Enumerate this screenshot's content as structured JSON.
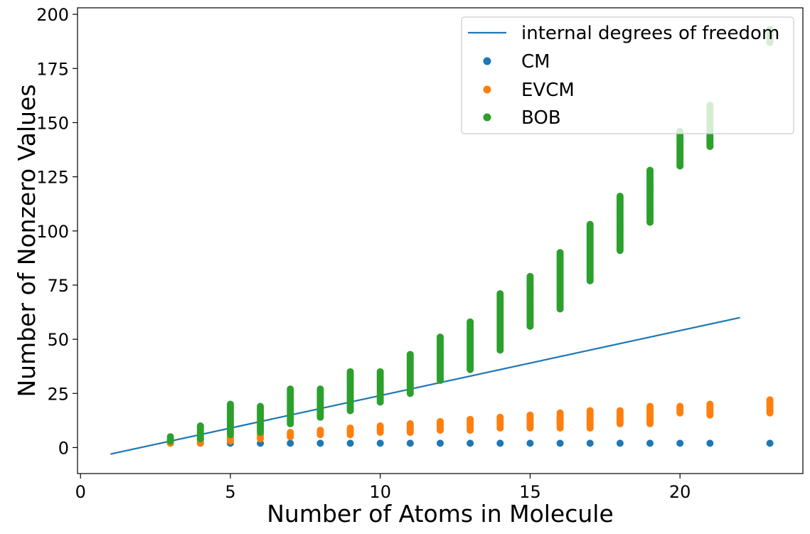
{
  "chart_data": {
    "type": "scatter",
    "xlabel": "Number of Atoms in Molecule",
    "ylabel": "Number of Nonzero Values",
    "xlim": [
      -0.1,
      24.1
    ],
    "ylim": [
      -12,
      203
    ],
    "xticks": [
      0,
      5,
      10,
      15,
      20
    ],
    "yticks": [
      0,
      25,
      50,
      75,
      100,
      125,
      150,
      175,
      200
    ],
    "legend_position": "top-right",
    "line": {
      "name": "internal degrees of freedom",
      "color": "#1f77b4",
      "x": [
        1,
        22
      ],
      "y": [
        -3,
        60
      ]
    },
    "series": [
      {
        "name": "CM",
        "color": "#1f77b4",
        "points": [
          [
            3,
            2
          ],
          [
            4,
            2
          ],
          [
            5,
            2
          ],
          [
            6,
            2
          ],
          [
            7,
            2
          ],
          [
            8,
            2
          ],
          [
            9,
            2
          ],
          [
            10,
            2
          ],
          [
            11,
            2
          ],
          [
            12,
            2
          ],
          [
            13,
            2
          ],
          [
            14,
            2
          ],
          [
            15,
            2
          ],
          [
            16,
            2
          ],
          [
            17,
            2
          ],
          [
            18,
            2
          ],
          [
            19,
            2
          ],
          [
            20,
            2
          ],
          [
            21,
            2
          ],
          [
            23,
            2
          ]
        ]
      },
      {
        "name": "EVCM",
        "color": "#ff7f0e",
        "ranges": [
          {
            "x": 3,
            "min": 2,
            "max": 3
          },
          {
            "x": 4,
            "min": 2,
            "max": 4
          },
          {
            "x": 5,
            "min": 3,
            "max": 5
          },
          {
            "x": 6,
            "min": 4,
            "max": 6
          },
          {
            "x": 7,
            "min": 5,
            "max": 7
          },
          {
            "x": 8,
            "min": 6,
            "max": 8
          },
          {
            "x": 9,
            "min": 6,
            "max": 9
          },
          {
            "x": 10,
            "min": 7,
            "max": 10
          },
          {
            "x": 11,
            "min": 7,
            "max": 11
          },
          {
            "x": 12,
            "min": 8,
            "max": 12
          },
          {
            "x": 13,
            "min": 8,
            "max": 13
          },
          {
            "x": 14,
            "min": 9,
            "max": 14
          },
          {
            "x": 15,
            "min": 9,
            "max": 15
          },
          {
            "x": 16,
            "min": 9,
            "max": 16
          },
          {
            "x": 17,
            "min": 9,
            "max": 17
          },
          {
            "x": 18,
            "min": 11,
            "max": 17
          },
          {
            "x": 19,
            "min": 11,
            "max": 19
          },
          {
            "x": 20,
            "min": 16,
            "max": 19
          },
          {
            "x": 21,
            "min": 15,
            "max": 20
          },
          {
            "x": 23,
            "min": 16,
            "max": 22
          }
        ]
      },
      {
        "name": "BOB",
        "color": "#2ca02c",
        "ranges": [
          {
            "x": 3,
            "min": 3,
            "max": 5
          },
          {
            "x": 4,
            "min": 4,
            "max": 10
          },
          {
            "x": 5,
            "min": 6,
            "max": 20
          },
          {
            "x": 6,
            "min": 7,
            "max": 19
          },
          {
            "x": 7,
            "min": 11,
            "max": 27
          },
          {
            "x": 8,
            "min": 14,
            "max": 27
          },
          {
            "x": 9,
            "min": 17,
            "max": 35
          },
          {
            "x": 10,
            "min": 21,
            "max": 35
          },
          {
            "x": 11,
            "min": 25,
            "max": 43
          },
          {
            "x": 12,
            "min": 31,
            "max": 51
          },
          {
            "x": 13,
            "min": 36,
            "max": 58
          },
          {
            "x": 14,
            "min": 45,
            "max": 71
          },
          {
            "x": 15,
            "min": 56,
            "max": 79
          },
          {
            "x": 16,
            "min": 64,
            "max": 90
          },
          {
            "x": 17,
            "min": 77,
            "max": 103
          },
          {
            "x": 18,
            "min": 91,
            "max": 116
          },
          {
            "x": 19,
            "min": 104,
            "max": 128
          },
          {
            "x": 20,
            "min": 130,
            "max": 146
          },
          {
            "x": 21,
            "min": 139,
            "max": 158
          },
          {
            "x": 23,
            "min": 187,
            "max": 193
          }
        ]
      }
    ]
  }
}
